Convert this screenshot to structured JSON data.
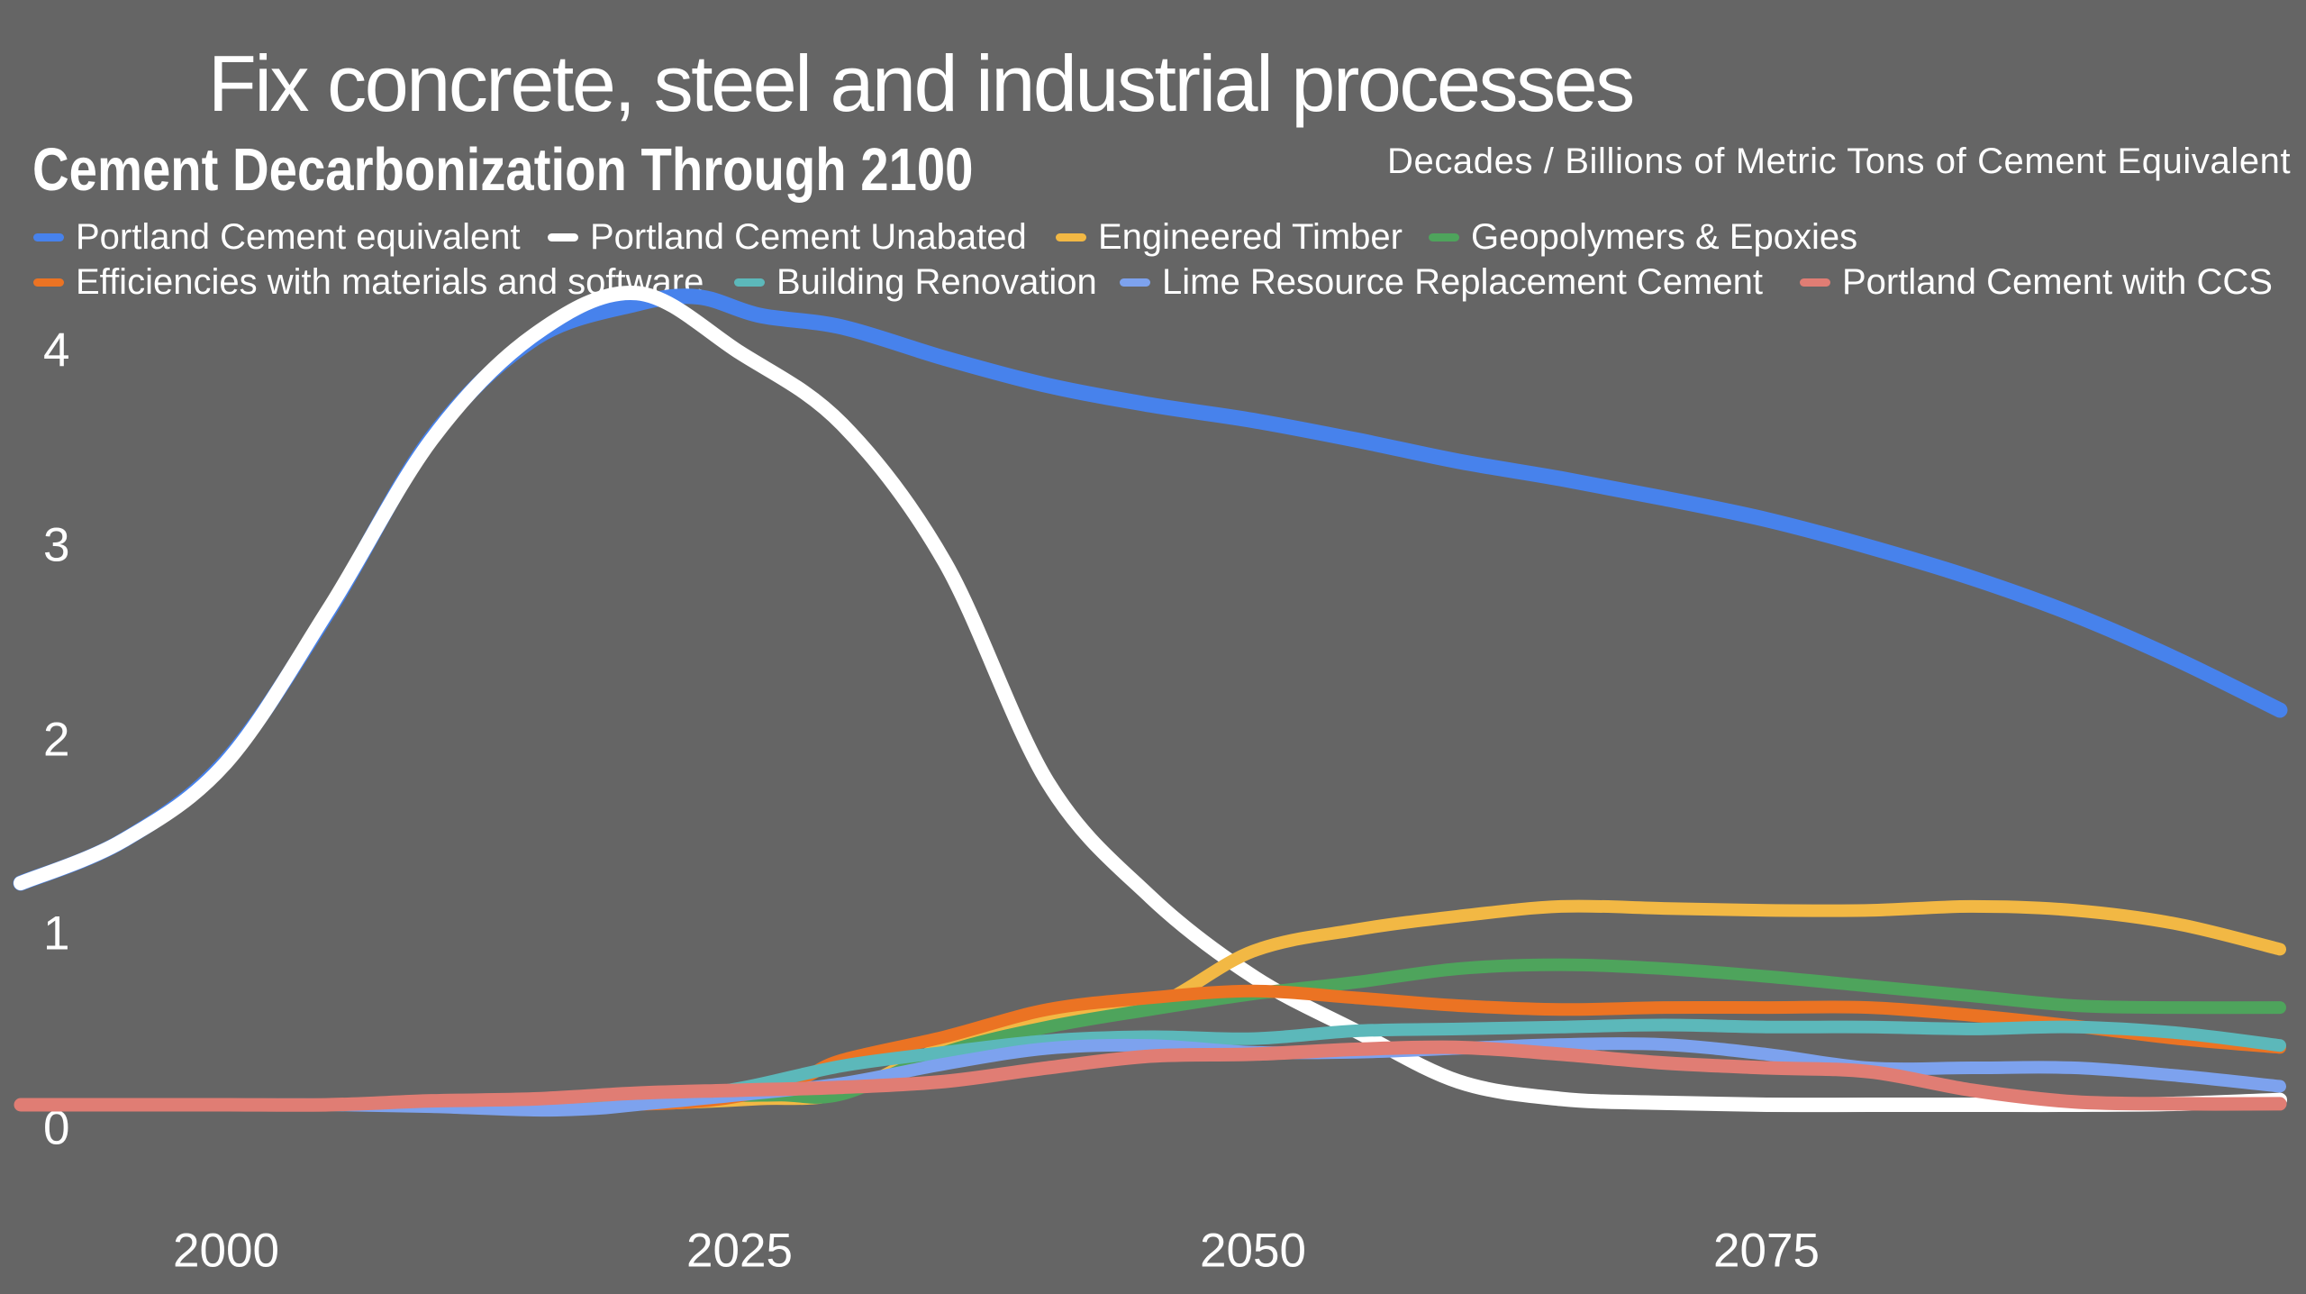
{
  "slide_title": "Fix concrete, steel and industrial processes",
  "chart_data": {
    "type": "line",
    "title": "Cement Decarbonization Through 2100",
    "axis_note": "Decades / Billions of Metric Tons of Cement Equivalent",
    "xlabel": "Decades",
    "ylabel": "Billions of Metric Tons of Cement Equivalent",
    "x_ticks": [
      2000,
      2025,
      2050,
      2075
    ],
    "y_ticks": [
      4,
      3,
      2,
      1,
      0
    ],
    "x_range": [
      1990,
      2100
    ],
    "y_range": [
      0,
      4
    ],
    "grid": false,
    "legend_position": "top",
    "background_color": "#656565",
    "text_color": "#ffffff",
    "series": [
      {
        "name": "Portland Cement equivalent",
        "color": "#4782ec",
        "width": 17,
        "x": [
          1990,
          1995,
          2000,
          2005,
          2010,
          2015,
          2020,
          2023,
          2026,
          2030,
          2035,
          2040,
          2045,
          2050,
          2055,
          2060,
          2065,
          2070,
          2075,
          2080,
          2085,
          2090,
          2095,
          2100
        ],
        "values": [
          1.14,
          1.36,
          1.77,
          2.54,
          3.43,
          3.94,
          4.12,
          4.155,
          4.06,
          4.0,
          3.84,
          3.7,
          3.6,
          3.52,
          3.42,
          3.31,
          3.22,
          3.12,
          3.01,
          2.87,
          2.71,
          2.52,
          2.29,
          2.03
        ]
      },
      {
        "name": "Portland Cement Unabated",
        "color": "#ffffff",
        "width": 16,
        "x": [
          1990,
          1995,
          2000,
          2005,
          2010,
          2015,
          2020,
          2025,
          2030,
          2035,
          2040,
          2045,
          2050,
          2055,
          2060,
          2065,
          2070,
          2075,
          2080,
          2085,
          2090,
          2095,
          2100
        ],
        "values": [
          1.14,
          1.36,
          1.76,
          2.55,
          3.42,
          3.96,
          4.175,
          3.87,
          3.5,
          2.79,
          1.66,
          1.07,
          0.66,
          0.38,
          0.12,
          0.03,
          0.01,
          0.0,
          0.0,
          0.0,
          0.0,
          0.005,
          0.025
        ]
      },
      {
        "name": "Engineered Timber",
        "color": "#f2b844",
        "width": 14,
        "x": [
          1990,
          2000,
          2010,
          2018,
          2022,
          2026,
          2030,
          2035,
          2040,
          2045,
          2050,
          2055,
          2060,
          2065,
          2070,
          2075,
          2080,
          2085,
          2090,
          2095,
          2100
        ],
        "values": [
          0,
          0,
          0,
          0,
          0.01,
          0.03,
          0.06,
          0.3,
          0.45,
          0.505,
          0.79,
          0.9,
          0.97,
          1.02,
          1.01,
          1.0,
          1.0,
          1.02,
          1.0,
          0.93,
          0.8
        ]
      },
      {
        "name": "Geopolymers & Epoxies",
        "color": "#4ea45c",
        "width": 14,
        "x": [
          1990,
          2000,
          2010,
          2015,
          2020,
          2024,
          2027,
          2030,
          2035,
          2040,
          2045,
          2050,
          2055,
          2060,
          2065,
          2070,
          2075,
          2080,
          2085,
          2090,
          2095,
          2100
        ],
        "values": [
          0,
          0,
          0,
          0.015,
          0.03,
          0.045,
          0.05,
          0.055,
          0.27,
          0.4,
          0.49,
          0.57,
          0.63,
          0.7,
          0.72,
          0.7,
          0.66,
          0.61,
          0.56,
          0.51,
          0.5,
          0.5
        ]
      },
      {
        "name": "Efficiencies with materials and software",
        "color": "#eb7323",
        "width": 14,
        "x": [
          1990,
          2000,
          2010,
          2018,
          2022,
          2025,
          2028,
          2030,
          2035,
          2040,
          2045,
          2050,
          2055,
          2060,
          2065,
          2070,
          2075,
          2080,
          2085,
          2090,
          2095,
          2100
        ],
        "values": [
          0,
          0,
          0,
          0,
          0.01,
          0.045,
          0.135,
          0.23,
          0.35,
          0.49,
          0.55,
          0.585,
          0.55,
          0.51,
          0.49,
          0.5,
          0.5,
          0.5,
          0.46,
          0.405,
          0.34,
          0.295
        ]
      },
      {
        "name": "Building Renovation",
        "color": "#5cb8ba",
        "width": 14,
        "x": [
          1990,
          2000,
          2010,
          2018,
          2020,
          2025,
          2030,
          2035,
          2040,
          2045,
          2050,
          2055,
          2060,
          2065,
          2070,
          2075,
          2080,
          2085,
          2090,
          2095,
          2100
        ],
        "values": [
          0,
          0,
          0,
          0,
          0.01,
          0.085,
          0.2,
          0.27,
          0.33,
          0.35,
          0.34,
          0.38,
          0.39,
          0.4,
          0.41,
          0.4,
          0.4,
          0.39,
          0.4,
          0.37,
          0.305
        ]
      },
      {
        "name": "Lime Resource Replacement Cement",
        "color": "#7da2ee",
        "width": 14,
        "x": [
          1990,
          2000,
          2005,
          2010,
          2015,
          2018,
          2020,
          2025,
          2030,
          2035,
          2040,
          2045,
          2050,
          2055,
          2060,
          2065,
          2070,
          2075,
          2080,
          2085,
          2090,
          2095,
          2100
        ],
        "values": [
          0,
          0,
          0,
          -0.01,
          -0.028,
          -0.02,
          0.0,
          0.05,
          0.11,
          0.21,
          0.29,
          0.305,
          0.27,
          0.27,
          0.29,
          0.31,
          0.31,
          0.26,
          0.19,
          0.19,
          0.19,
          0.15,
          0.095
        ]
      },
      {
        "name": "Portland Cement with CCS",
        "color": "#e07d74",
        "width": 15,
        "x": [
          1990,
          1995,
          2000,
          2005,
          2010,
          2015,
          2020,
          2025,
          2030,
          2035,
          2040,
          2045,
          2050,
          2055,
          2060,
          2065,
          2070,
          2075,
          2080,
          2085,
          2090,
          2095,
          2100
        ],
        "values": [
          0.0,
          0.0,
          0.0,
          0.0,
          0.02,
          0.03,
          0.06,
          0.075,
          0.09,
          0.12,
          0.19,
          0.25,
          0.26,
          0.285,
          0.295,
          0.26,
          0.215,
          0.19,
          0.17,
          0.075,
          0.015,
          0.005,
          0.005
        ]
      }
    ]
  }
}
